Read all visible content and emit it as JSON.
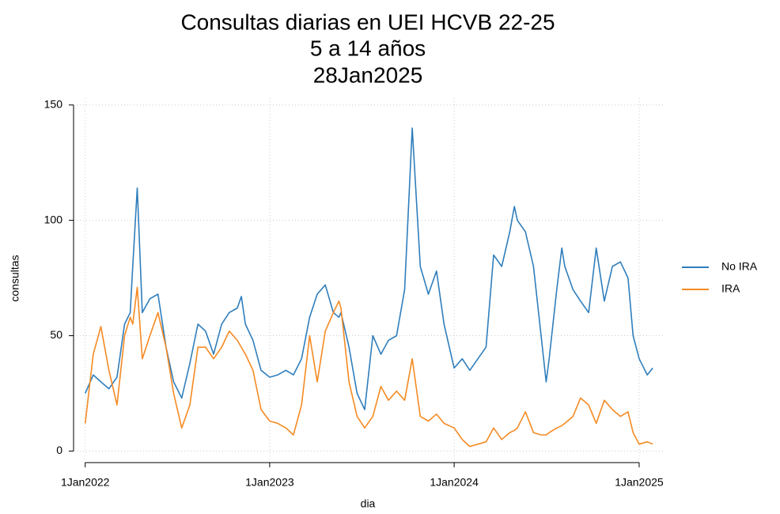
{
  "chart_data": {
    "type": "line",
    "title": [
      "Consultas diarias en UEI HCVB 22-25",
      "5 a 14 años",
      "28Jan2025"
    ],
    "x_label": "dia",
    "y_label": "consultas",
    "x": [
      "2022-01-01",
      "2022-01-17",
      "2022-02-01",
      "2022-02-17",
      "2022-03-05",
      "2022-03-20",
      "2022-03-31",
      "2022-04-05",
      "2022-04-14",
      "2022-04-24",
      "2022-05-09",
      "2022-05-25",
      "2022-06-10",
      "2022-06-25",
      "2022-07-11",
      "2022-07-27",
      "2022-08-12",
      "2022-08-27",
      "2022-09-12",
      "2022-09-28",
      "2022-10-13",
      "2022-10-29",
      "2022-11-06",
      "2022-11-14",
      "2022-11-29",
      "2022-12-15",
      "2023-01-01",
      "2023-01-17",
      "2023-02-02",
      "2023-02-17",
      "2023-03-05",
      "2023-03-21",
      "2023-04-05",
      "2023-04-21",
      "2023-05-07",
      "2023-05-18",
      "2023-05-22",
      "2023-06-07",
      "2023-06-23",
      "2023-07-08",
      "2023-07-24",
      "2023-08-09",
      "2023-08-24",
      "2023-09-09",
      "2023-09-25",
      "2023-10-10",
      "2023-10-26",
      "2023-11-11",
      "2023-11-27",
      "2023-12-12",
      "2024-01-01",
      "2024-01-17",
      "2024-02-01",
      "2024-02-17",
      "2024-03-04",
      "2024-03-19",
      "2024-04-04",
      "2024-04-20",
      "2024-04-29",
      "2024-05-05",
      "2024-05-21",
      "2024-06-06",
      "2024-06-21",
      "2024-07-01",
      "2024-07-07",
      "2024-07-22",
      "2024-08-01",
      "2024-08-07",
      "2024-08-23",
      "2024-09-07",
      "2024-09-23",
      "2024-10-08",
      "2024-10-24",
      "2024-11-09",
      "2024-11-25",
      "2024-12-10",
      "2024-12-20",
      "2025-01-01",
      "2025-01-17",
      "2025-01-28"
    ],
    "series": [
      {
        "name": "No IRA",
        "color": "#2f7ebc",
        "values": [
          25,
          33,
          30,
          27,
          32,
          55,
          60,
          80,
          114,
          60,
          66,
          68,
          45,
          30,
          23,
          38,
          55,
          52,
          42,
          55,
          60,
          62,
          67,
          55,
          48,
          35,
          32,
          33,
          35,
          33,
          40,
          58,
          68,
          72,
          60,
          58,
          60,
          45,
          25,
          18,
          50,
          42,
          48,
          50,
          70,
          140,
          80,
          68,
          78,
          55,
          36,
          40,
          35,
          40,
          45,
          85,
          80,
          95,
          106,
          100,
          95,
          80,
          50,
          30,
          40,
          70,
          88,
          80,
          70,
          65,
          60,
          88,
          65,
          80,
          82,
          75,
          50,
          40,
          33,
          36
        ]
      },
      {
        "name": "IRA",
        "color": "#f58a22",
        "values": [
          12,
          42,
          54,
          35,
          20,
          50,
          58,
          55,
          71,
          40,
          50,
          60,
          45,
          25,
          10,
          20,
          45,
          45,
          40,
          45,
          52,
          48,
          45,
          42,
          35,
          18,
          13,
          12,
          10,
          7,
          20,
          50,
          30,
          52,
          60,
          65,
          62,
          30,
          15,
          10,
          15,
          28,
          22,
          26,
          22,
          40,
          15,
          13,
          16,
          12,
          10,
          5,
          2,
          3,
          4,
          10,
          5,
          8,
          9,
          10,
          17,
          8,
          7,
          7,
          8,
          10,
          11,
          12,
          15,
          23,
          20,
          12,
          22,
          18,
          15,
          17,
          8,
          3,
          4,
          3
        ]
      }
    ],
    "xlim": [
      "2021-12-09",
      "2025-02-17"
    ],
    "xticks": [
      {
        "value": "2022-01-01",
        "label": "1Jan2022"
      },
      {
        "value": "2023-01-01",
        "label": "1Jan2023"
      },
      {
        "value": "2024-01-01",
        "label": "1Jan2024"
      },
      {
        "value": "2025-01-01",
        "label": "1Jan2025"
      }
    ],
    "ylim": [
      -5,
      153
    ],
    "yticks": [
      0,
      50,
      100,
      150
    ],
    "grid": true,
    "legend": "right"
  }
}
